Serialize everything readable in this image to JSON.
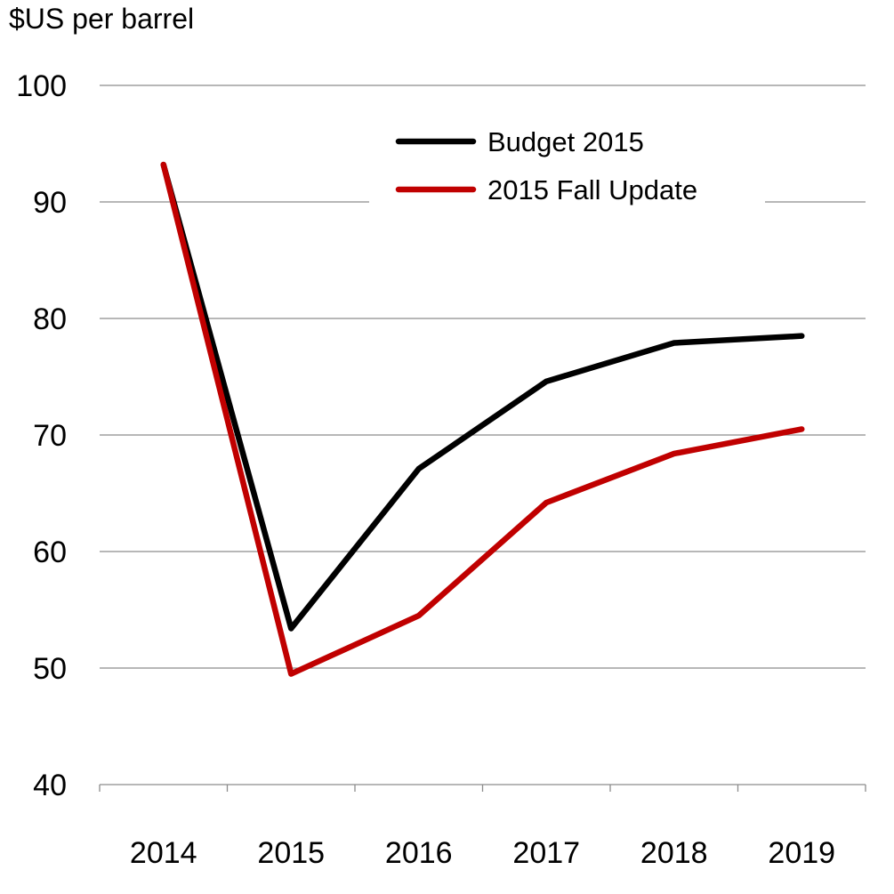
{
  "chart_data": {
    "type": "line",
    "ylabel": "$US per barrel",
    "x": [
      "2014",
      "2015",
      "2016",
      "2017",
      "2018",
      "2019"
    ],
    "ylim": [
      40,
      100
    ],
    "yticks": [
      "40",
      "50",
      "60",
      "70",
      "80",
      "90",
      "100"
    ],
    "grid": true,
    "legend_position": "top-right",
    "series": [
      {
        "name": "Budget 2015",
        "color": "#000000",
        "values": [
          93.2,
          53.4,
          67.1,
          74.6,
          77.9,
          78.5
        ]
      },
      {
        "name": "2015 Fall Update",
        "color": "#c00000",
        "values": [
          93.2,
          49.5,
          54.5,
          64.2,
          68.4,
          70.5
        ]
      }
    ]
  }
}
